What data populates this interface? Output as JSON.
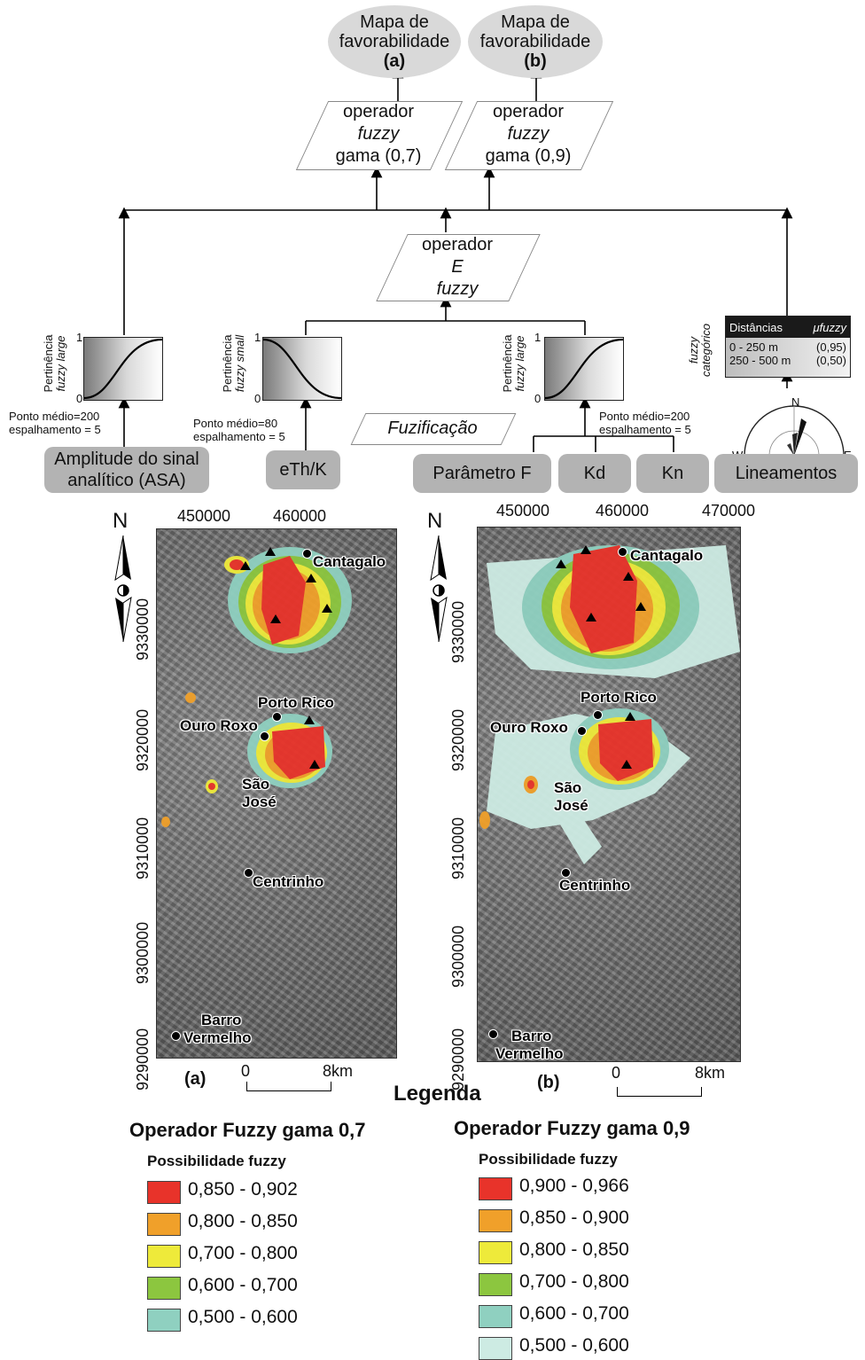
{
  "outputs": [
    {
      "line1": "Mapa de",
      "line2": "favorabilidade",
      "tag": "(a)"
    },
    {
      "line1": "Mapa de",
      "line2": "favorabilidade",
      "tag": "(b)"
    }
  ],
  "gamma_ops": [
    {
      "line1": "operador",
      "line2": "fuzzy",
      "line3": "gama (0,7)"
    },
    {
      "line1": "operador",
      "line2": "fuzzy",
      "line3": "gama (0,9)"
    }
  ],
  "and_op": {
    "line1": "operador",
    "line2": "E",
    "line3": "fuzzy"
  },
  "fuzzification_label": "Fuzificação",
  "membership": [
    {
      "axis_label_1": "Pertinência",
      "axis_label_2": "fuzzy large",
      "one": "1",
      "zero": "0",
      "note1": "Ponto médio=200",
      "note2": "espalhamento = 5",
      "curve": "large"
    },
    {
      "axis_label_1": "Pertinência",
      "axis_label_2": "fuzzy small",
      "one": "1",
      "zero": "0",
      "note1": "Ponto médio=80",
      "note2": "espalhamento = 5",
      "curve": "small"
    },
    {
      "axis_label_1": "Pertinência",
      "axis_label_2": "fuzzy large",
      "one": "1",
      "zero": "0",
      "note1": "Ponto médio=200",
      "note2": "espalhamento = 5",
      "curve": "large"
    }
  ],
  "categorical": {
    "axis_label_1": "fuzzy",
    "axis_label_2": "categórico",
    "header_col1": "Distâncias",
    "header_col2": "μfuzzy",
    "rows": [
      {
        "range": "0 - 250 m",
        "value": "(0,95)"
      },
      {
        "range": "250 - 500 m",
        "value": "(0,50)"
      }
    ],
    "rose_n": "N",
    "rose_w": "W",
    "rose_e": "E"
  },
  "inputs": {
    "asa_line1": "Amplitude do sinal",
    "asa_line2": "analítico (ASA)",
    "eth": "eTh/K",
    "paramf": "Parâmetro F",
    "kd": "Kd",
    "kn": "Kn",
    "lineamentos": "Lineamentos"
  },
  "maps": [
    {
      "tag": "(a)",
      "north": "N",
      "x_ticks": [
        "450000",
        "460000"
      ],
      "y_ticks": [
        "9330000",
        "9320000",
        "9310000",
        "9300000",
        "9290000"
      ],
      "scale_0": "0",
      "scale_8": "8km",
      "towns": [
        "Cantagalo",
        "Porto Rico",
        "Ouro Roxo",
        "São",
        "José",
        "Centrinho",
        "Barro",
        "Vermelho"
      ]
    },
    {
      "tag": "(b)",
      "north": "N",
      "x_ticks": [
        "450000",
        "460000",
        "470000"
      ],
      "y_ticks": [
        "9330000",
        "9320000",
        "9310000",
        "9300000",
        "9290000"
      ],
      "scale_0": "0",
      "scale_8": "8km",
      "towns": [
        "Cantagalo",
        "Porto Rico",
        "Ouro Roxo",
        "São",
        "José",
        "Centrinho",
        "Barro",
        "Vermelho"
      ]
    }
  ],
  "legend_heading": "Legenda",
  "legends": [
    {
      "title": "Operador Fuzzy gama 0,7",
      "subtitle": "Possibilidade fuzzy",
      "classes": [
        {
          "label": "0,850 - 0,902",
          "color": "#e8332a"
        },
        {
          "label": "0,800 - 0,850",
          "color": "#f0a02a"
        },
        {
          "label": "0,700 - 0,800",
          "color": "#eeea3a"
        },
        {
          "label": "0,600 - 0,700",
          "color": "#8cc63f"
        },
        {
          "label": "0,500 - 0,600",
          "color": "#8fd0c0"
        }
      ]
    },
    {
      "title": "Operador Fuzzy gama 0,9",
      "subtitle": "Possibilidade fuzzy",
      "classes": [
        {
          "label": "0,900 - 0,966",
          "color": "#e8332a"
        },
        {
          "label": "0,850 - 0,900",
          "color": "#f0a02a"
        },
        {
          "label": "0,800 - 0,850",
          "color": "#eeea3a"
        },
        {
          "label": "0,700 - 0,800",
          "color": "#8cc63f"
        },
        {
          "label": "0,600 - 0,700",
          "color": "#8fd0c0"
        },
        {
          "label": "0,500 - 0,600",
          "color": "#cdebe3"
        }
      ]
    }
  ]
}
